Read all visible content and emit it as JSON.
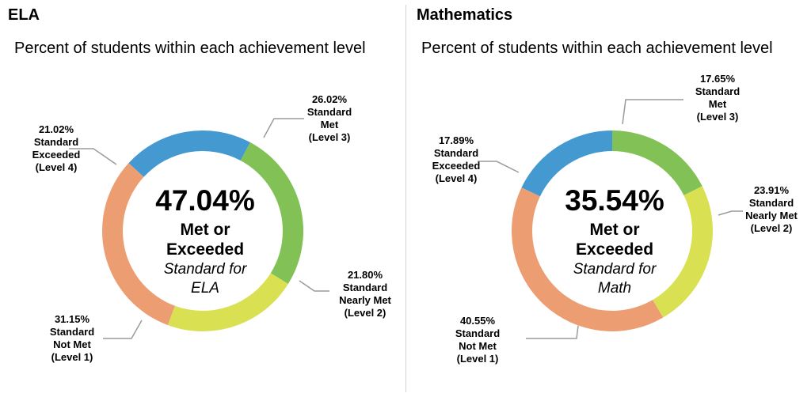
{
  "colors": {
    "level4": "#4599d1",
    "level3": "#82c155",
    "level2": "#d9e052",
    "level1": "#ec9e72",
    "leader": "#9b9b9b"
  },
  "chart_data": [
    {
      "type": "pie",
      "panel_title": "ELA",
      "title": "Percent of students within each achievement level",
      "center": {
        "percent": "47.04%",
        "line1": "Met or",
        "line2": "Exceeded",
        "line3": "Standard for",
        "line4": "ELA"
      },
      "slices": [
        {
          "value": 21.02,
          "label": "21.02%",
          "l1": "Standard",
          "l2": "Exceeded",
          "l3": "(Level 4)",
          "color": "#4599d1"
        },
        {
          "value": 26.02,
          "label": "26.02%",
          "l1": "Standard",
          "l2": "Met",
          "l3": "(Level 3)",
          "color": "#82c155"
        },
        {
          "value": 21.8,
          "label": "21.80%",
          "l1": "Standard",
          "l2": "Nearly Met",
          "l3": "(Level 2)",
          "color": "#d9e052"
        },
        {
          "value": 31.15,
          "label": "31.15%",
          "l1": "Standard",
          "l2": "Not Met",
          "l3": "(Level 1)",
          "color": "#ec9e72"
        }
      ]
    },
    {
      "type": "pie",
      "panel_title": "Mathematics",
      "title": "Percent of students within each achievement level",
      "center": {
        "percent": "35.54%",
        "line1": "Met or",
        "line2": "Exceeded",
        "line3": "Standard for",
        "line4": "Math"
      },
      "slices": [
        {
          "value": 17.89,
          "label": "17.89%",
          "l1": "Standard",
          "l2": "Exceeded",
          "l3": "(Level 4)",
          "color": "#4599d1"
        },
        {
          "value": 17.65,
          "label": "17.65%",
          "l1": "Standard",
          "l2": "Met",
          "l3": "(Level 3)",
          "color": "#82c155"
        },
        {
          "value": 23.91,
          "label": "23.91%",
          "l1": "Standard",
          "l2": "Nearly Met",
          "l3": "(Level 2)",
          "color": "#d9e052"
        },
        {
          "value": 40.55,
          "label": "40.55%",
          "l1": "Standard",
          "l2": "Not Met",
          "l3": "(Level 1)",
          "color": "#ec9e72"
        }
      ]
    }
  ]
}
